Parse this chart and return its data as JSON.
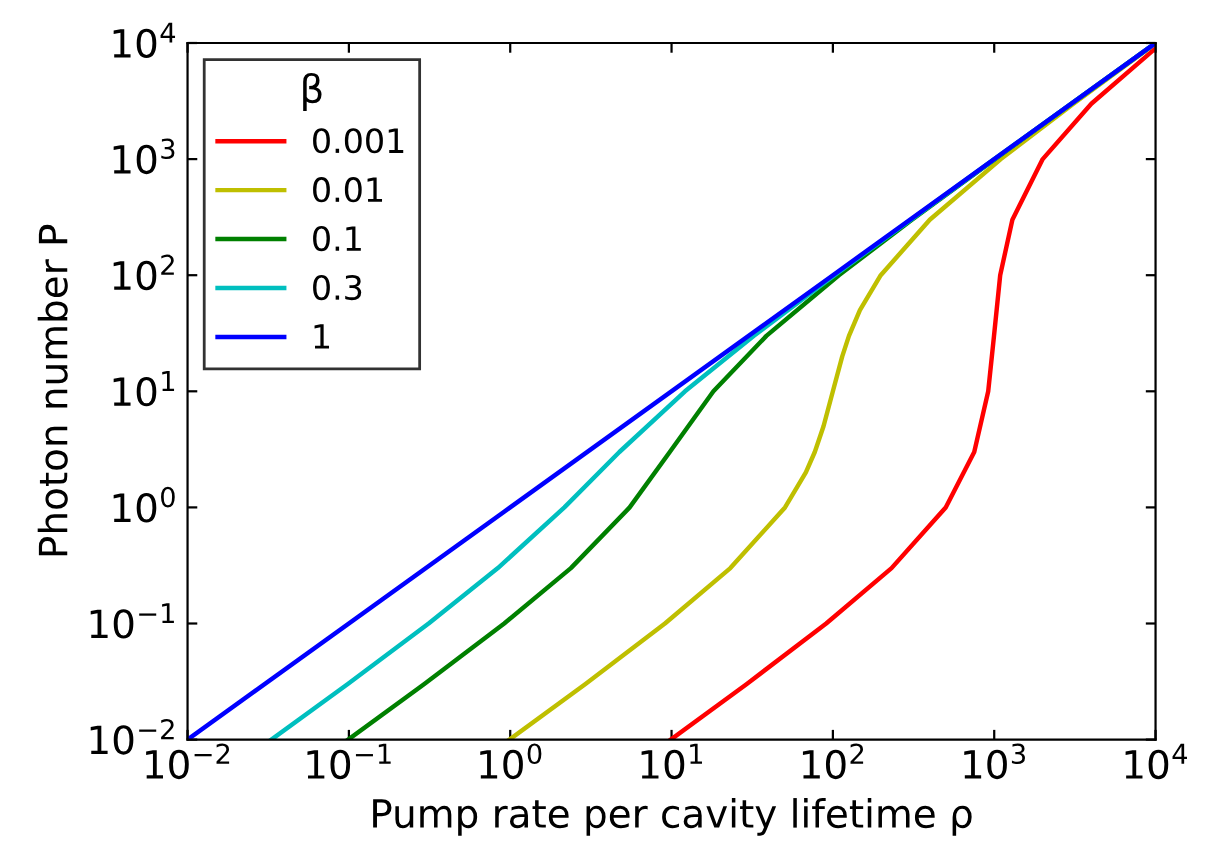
{
  "chart_data": {
    "type": "line",
    "xlabel": "Pump rate per cavity lifetime ρ",
    "ylabel": "Photon number P",
    "legend_title": "β",
    "legend": "top left",
    "grid": false,
    "log": "xy",
    "marker": "none",
    "line_style": "solid",
    "xlim": [
      0.01,
      10000
    ],
    "ylim": [
      0.01,
      10000
    ],
    "xticks": [
      {
        "value": 0.01,
        "label": "10$^{−2}$"
      },
      {
        "value": 0.1,
        "label": "10$^{−1}$"
      },
      {
        "value": 1,
        "label": "10$^{0}$"
      },
      {
        "value": 10,
        "label": "10$^{1}$"
      },
      {
        "value": 100,
        "label": "10$^{2}$"
      },
      {
        "value": 1000,
        "label": "10$^{3}$"
      },
      {
        "value": 10000,
        "label": "10$^{4}$"
      }
    ],
    "yticks": [
      {
        "value": 0.01,
        "label": "10$^{−2}$"
      },
      {
        "value": 0.1,
        "label": "10$^{−1}$"
      },
      {
        "value": 1,
        "label": "10$^{0}$"
      },
      {
        "value": 10,
        "label": "10$^{1}$"
      },
      {
        "value": 100,
        "label": "10$^{2}$"
      },
      {
        "value": 1000,
        "label": "10$^{3}$"
      },
      {
        "value": 10000,
        "label": "10$^{4}$"
      }
    ],
    "series": [
      {
        "name": "0.001",
        "color": "#ff0000",
        "x": [
          9.9,
          29.13,
          90.9,
          231,
          500.5,
          752,
          918,
          996.8,
          1089,
          1296,
          1998,
          3999,
          9999
        ],
        "values": [
          0.01,
          0.03,
          0.1,
          0.3,
          1,
          3,
          10,
          30,
          100,
          300,
          1000,
          3000,
          9000
        ]
      },
      {
        "name": "0.01",
        "color": "#bfbf00",
        "x": [
          0.99,
          2.913,
          9.1,
          23.15,
          50.5,
          68,
          77.25,
          87.5,
          100,
          114.3,
          125.8,
          147.1,
          198,
          398.7,
          1099,
          3099,
          9099
        ],
        "values": [
          0.01,
          0.03,
          0.1,
          0.3,
          1,
          2,
          3,
          5,
          10,
          20,
          30,
          50,
          100,
          300,
          1000,
          3000,
          9000
        ]
      },
      {
        "name": "0.1",
        "color": "#008000",
        "x": [
          0.0991,
          0.2921,
          0.918,
          2.377,
          5.5,
          9.75,
          18.18,
          38.71,
          108.9,
          309,
          1009,
          9009
        ],
        "values": [
          0.01,
          0.03,
          0.1,
          0.3,
          1,
          3,
          10,
          30,
          100,
          300,
          1000,
          9000
        ]
      },
      {
        "name": "0.3",
        "color": "#00bfbf",
        "x": [
          0.0331,
          0.098,
          0.3121,
          0.8385,
          2.167,
          4.75,
          12.12,
          32.26,
          102.3,
          1002.3,
          10000
        ],
        "values": [
          0.01,
          0.03,
          0.1,
          0.3,
          1,
          3,
          10,
          30,
          100,
          1000,
          10000
        ]
      },
      {
        "name": "1",
        "color": "#0000ff",
        "x": [
          0.01,
          1,
          100,
          10000
        ],
        "values": [
          0.01,
          1,
          100,
          10000
        ]
      }
    ]
  }
}
